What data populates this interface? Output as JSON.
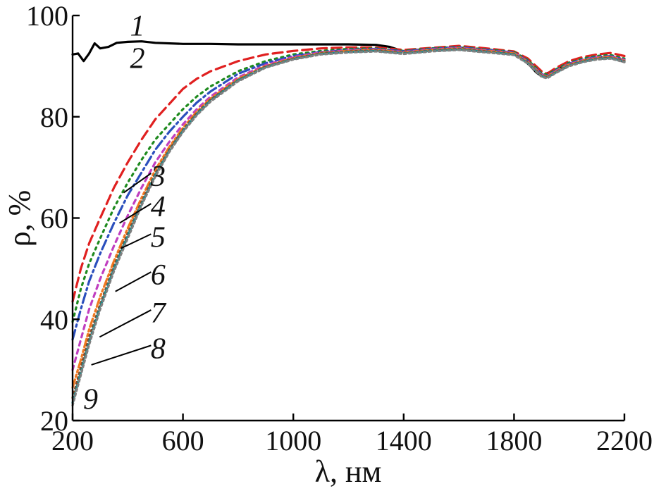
{
  "chart_data": {
    "type": "line",
    "xlabel": "λ, нм",
    "ylabel": "ρ, %",
    "xlim": [
      200,
      2200
    ],
    "ylim": [
      20,
      100
    ],
    "xticks": [
      "200",
      "600",
      "1000",
      "1400",
      "1800",
      "2200"
    ],
    "yticks": [
      "20",
      "40",
      "60",
      "80",
      "100"
    ],
    "grid": false,
    "series": [
      {
        "name": "1",
        "color": "#000000",
        "dash": "",
        "x": [
          200,
          220,
          240,
          260,
          280,
          300,
          330,
          360,
          400,
          450,
          500,
          600,
          700,
          800,
          900,
          1000,
          1100,
          1200,
          1300,
          1350,
          1400,
          1450,
          1500,
          1550,
          1600,
          1650,
          1700,
          1750,
          1800,
          1830,
          1860,
          1880,
          1900,
          1920,
          1950,
          2000,
          2050,
          2100,
          2150,
          2200
        ],
        "y": [
          92.3,
          92.5,
          91.0,
          92.5,
          94.5,
          93.5,
          93.8,
          94.6,
          94.8,
          94.9,
          94.6,
          94.4,
          94.4,
          94.3,
          94.3,
          94.3,
          94.3,
          94.3,
          94.2,
          93.8,
          92.9,
          93.2,
          93.3,
          93.4,
          93.7,
          93.3,
          92.9,
          92.8,
          92.3,
          91.5,
          90.0,
          88.8,
          88.0,
          88.6,
          89.2,
          90.4,
          91.0,
          91.6,
          91.8,
          90.8
        ]
      },
      {
        "name": "2",
        "color": "#e02020",
        "dash": "14 7",
        "x": [
          200,
          230,
          260,
          300,
          350,
          400,
          450,
          500,
          550,
          600,
          650,
          700,
          800,
          900,
          1000,
          1100,
          1200,
          1300,
          1400,
          1500,
          1600,
          1700,
          1800,
          1850,
          1900,
          1920,
          1950,
          2000,
          2050,
          2100,
          2150,
          2200
        ],
        "y": [
          43.5,
          50,
          55,
          60,
          66,
          71,
          75.5,
          79.5,
          82.5,
          85.5,
          87.5,
          89,
          91,
          92.3,
          93.0,
          93.5,
          93.7,
          93.7,
          93.2,
          93.6,
          94.0,
          93.5,
          92.9,
          91.5,
          89.0,
          88.5,
          89.6,
          91.0,
          91.8,
          92.3,
          92.6,
          92.0
        ]
      },
      {
        "name": "3",
        "color": "#1e8a1e",
        "dash": "3 6",
        "x": [
          200,
          230,
          260,
          300,
          350,
          400,
          450,
          500,
          550,
          600,
          650,
          700,
          800,
          900,
          1000,
          1100,
          1200,
          1300,
          1400,
          1500,
          1600,
          1700,
          1800,
          1850,
          1900,
          1920,
          1950,
          2000,
          2050,
          2100,
          2150,
          2200
        ],
        "y": [
          39.5,
          46,
          51,
          56,
          62,
          67,
          71.5,
          75.5,
          78.5,
          81.5,
          84,
          86,
          89,
          91,
          92.3,
          93.0,
          93.4,
          93.5,
          93.0,
          93.5,
          93.8,
          93.3,
          92.8,
          91.2,
          88.6,
          88.3,
          89.3,
          90.7,
          91.5,
          92.0,
          92.2,
          91.5
        ]
      },
      {
        "name": "4",
        "color": "#2b4fbd",
        "dash": "14 5 3 5",
        "x": [
          200,
          230,
          260,
          300,
          350,
          400,
          450,
          500,
          550,
          600,
          650,
          700,
          800,
          900,
          1000,
          1100,
          1200,
          1300,
          1400,
          1500,
          1600,
          1700,
          1800,
          1850,
          1900,
          1920,
          1950,
          2000,
          2050,
          2100,
          2150,
          2200
        ],
        "y": [
          36,
          42,
          47.5,
          53,
          59,
          64.5,
          69,
          73.5,
          77,
          80,
          82.8,
          85,
          88.5,
          90.6,
          92.0,
          92.8,
          93.2,
          93.4,
          92.9,
          93.4,
          93.7,
          93.2,
          92.7,
          91.0,
          88.4,
          88.1,
          89.1,
          90.5,
          91.3,
          91.8,
          92.0,
          91.3
        ]
      },
      {
        "name": "5",
        "color": "#c03fc0",
        "dash": "6 6",
        "x": [
          200,
          230,
          260,
          300,
          350,
          400,
          450,
          500,
          550,
          600,
          650,
          700,
          800,
          900,
          1000,
          1100,
          1200,
          1300,
          1400,
          1500,
          1600,
          1700,
          1800,
          1850,
          1900,
          1920,
          1950,
          2000,
          2050,
          2100,
          2150,
          2200
        ],
        "y": [
          30,
          36,
          42,
          48,
          54.5,
          60.5,
          66,
          71,
          75,
          78.5,
          81.5,
          84,
          87.8,
          90.2,
          91.8,
          92.7,
          93.1,
          93.3,
          92.8,
          93.3,
          93.6,
          93.1,
          92.6,
          90.9,
          88.3,
          88.0,
          89.0,
          90.4,
          91.2,
          91.7,
          91.9,
          91.2
        ]
      },
      {
        "name": "6",
        "color": "#f07820",
        "dash": "12 4 3 4 3 4",
        "x": [
          200,
          230,
          260,
          300,
          350,
          400,
          450,
          500,
          550,
          600,
          650,
          700,
          800,
          900,
          1000,
          1100,
          1200,
          1300,
          1400,
          1500,
          1600,
          1700,
          1800,
          1850,
          1900,
          1920,
          1950,
          2000,
          2050,
          2100,
          2150,
          2200
        ],
        "y": [
          26.5,
          32,
          38,
          44.5,
          51.5,
          58,
          64,
          69.5,
          74,
          77.8,
          81,
          83.6,
          87.5,
          90.0,
          91.6,
          92.6,
          93.0,
          93.2,
          92.7,
          93.2,
          93.5,
          93.0,
          92.5,
          90.8,
          88.2,
          87.9,
          88.9,
          90.3,
          91.1,
          91.6,
          91.8,
          91.1
        ]
      },
      {
        "name": "7",
        "color": "#8a4a2a",
        "dash": "2 5",
        "x": [
          200,
          230,
          260,
          300,
          350,
          400,
          450,
          500,
          550,
          600,
          650,
          700,
          800,
          900,
          1000,
          1100,
          1200,
          1300,
          1400,
          1500,
          1600,
          1700,
          1800,
          1850,
          1900,
          1920,
          1950,
          2000,
          2050,
          2100,
          2150,
          2200
        ],
        "y": [
          24.5,
          30.5,
          36.5,
          43,
          50.5,
          57,
          63.2,
          68.8,
          73.5,
          77.4,
          80.7,
          83.4,
          87.3,
          89.9,
          91.5,
          92.5,
          92.9,
          93.1,
          92.6,
          93.1,
          93.4,
          92.9,
          92.4,
          90.7,
          88.1,
          87.8,
          88.8,
          90.2,
          91.0,
          91.5,
          91.7,
          91.0
        ]
      },
      {
        "name": "8",
        "color": "#1a8a8a",
        "dash": "8 4 2 4",
        "x": [
          200,
          230,
          260,
          300,
          350,
          400,
          450,
          500,
          550,
          600,
          650,
          700,
          800,
          900,
          1000,
          1100,
          1200,
          1300,
          1400,
          1500,
          1600,
          1700,
          1800,
          1850,
          1900,
          1920,
          1950,
          2000,
          2050,
          2100,
          2150,
          2200
        ],
        "y": [
          23.5,
          29.5,
          35.5,
          42.5,
          50,
          56.5,
          62.8,
          68.5,
          73.2,
          77.2,
          80.5,
          83.2,
          87.2,
          89.8,
          91.4,
          92.4,
          92.8,
          93.0,
          92.5,
          93.0,
          93.3,
          92.8,
          92.3,
          90.6,
          88.0,
          87.7,
          88.7,
          90.1,
          90.9,
          91.4,
          91.6,
          90.9
        ]
      },
      {
        "name": "9",
        "color": "#808080",
        "dash": "3 4",
        "x": [
          200,
          230,
          260,
          300,
          350,
          400,
          450,
          500,
          550,
          600,
          650,
          700,
          800,
          900,
          1000,
          1100,
          1200,
          1300,
          1400,
          1500,
          1600,
          1700,
          1800,
          1850,
          1900,
          1920,
          1950,
          2000,
          2050,
          2100,
          2150,
          2200
        ],
        "y": [
          23,
          29,
          35,
          42,
          49.5,
          56,
          62.5,
          68.2,
          73,
          77,
          80.3,
          83,
          87,
          89.7,
          91.3,
          92.3,
          92.7,
          92.9,
          92.4,
          92.9,
          93.2,
          92.7,
          92.2,
          90.5,
          87.9,
          87.6,
          88.6,
          90.0,
          90.8,
          91.3,
          91.5,
          90.8
        ]
      }
    ],
    "annotations": [
      {
        "text": "1",
        "x": 435,
        "y": 97.7,
        "tx": null,
        "ty": null
      },
      {
        "text": "2",
        "x": 435,
        "y": 91.3,
        "tx": null,
        "ty": null
      },
      {
        "text": "3",
        "x": 510,
        "y": 68.0,
        "tx": 385,
        "ty": 65.0
      },
      {
        "text": "4",
        "x": 510,
        "y": 62.0,
        "tx": 370,
        "ty": 59.0
      },
      {
        "text": "5",
        "x": 510,
        "y": 56.0,
        "tx": 375,
        "ty": 54.0
      },
      {
        "text": "6",
        "x": 510,
        "y": 48.5,
        "tx": 355,
        "ty": 45.5
      },
      {
        "text": "7",
        "x": 510,
        "y": 41.0,
        "tx": 298,
        "ty": 36.5
      },
      {
        "text": "8",
        "x": 510,
        "y": 34.0,
        "tx": 268,
        "ty": 31.0
      },
      {
        "text": "9",
        "x": 265,
        "y": 24.0,
        "tx": null,
        "ty": null
      }
    ]
  }
}
